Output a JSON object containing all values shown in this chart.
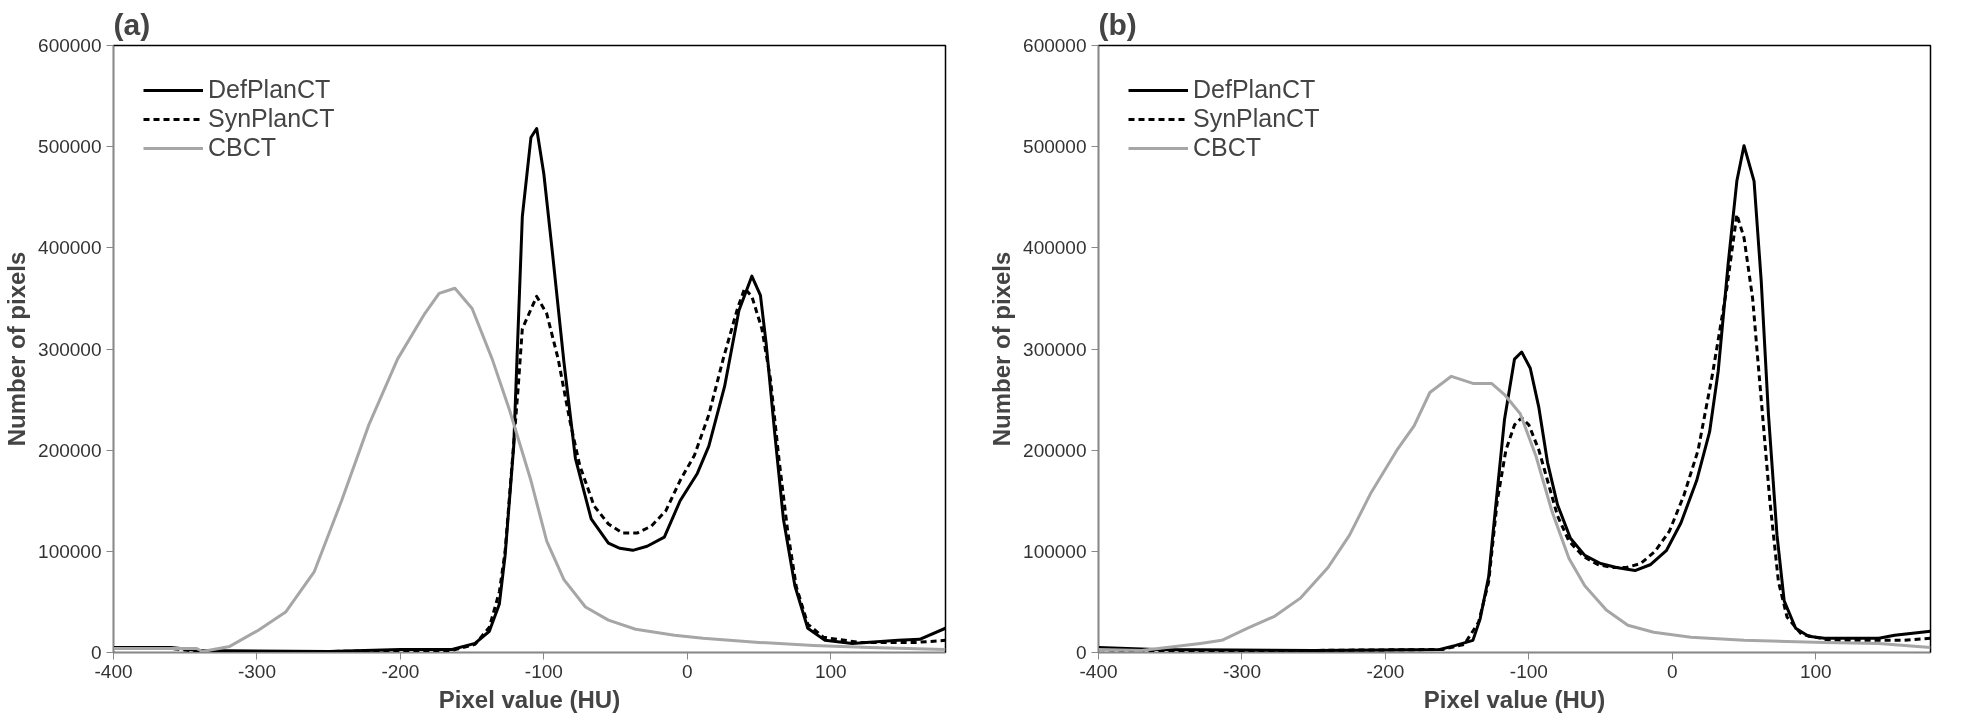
{
  "chart_data": [
    {
      "type": "line",
      "title": "(a)",
      "xlabel": "Pixel value (HU)",
      "ylabel": "Number of pixels",
      "xlim": [
        -400,
        180
      ],
      "xticks": [
        -400,
        -300,
        -200,
        -100,
        0,
        100
      ],
      "ylim": [
        0,
        600000
      ],
      "yticks": [
        0,
        100000,
        200000,
        300000,
        400000,
        500000,
        600000
      ],
      "grid": false,
      "legend": "top left",
      "marker": "none",
      "series": [
        {
          "name": "DefPlanCT",
          "color": "#000000",
          "line_style": "solid",
          "x": [
            -400,
            -360,
            -340,
            -250,
            -200,
            -164,
            -148,
            -138,
            -131,
            -127,
            -121,
            -115,
            -109,
            -105,
            -100,
            -94,
            -86,
            -78,
            -67,
            -55,
            -47,
            -38,
            -28,
            -16,
            -5,
            7,
            15,
            26,
            36,
            45,
            51,
            55,
            61,
            67,
            75,
            84,
            96,
            115,
            147,
            162,
            180
          ],
          "values": [
            5000,
            5000,
            2000,
            1000,
            3000,
            3000,
            9000,
            21000,
            48000,
            96000,
            204000,
            431000,
            509000,
            518000,
            473000,
            395000,
            287000,
            192000,
            132000,
            108000,
            103000,
            101000,
            105000,
            114000,
            150000,
            177000,
            204000,
            263000,
            338000,
            372000,
            353000,
            305000,
            216000,
            132000,
            66000,
            24000,
            12000,
            9000,
            12000,
            13000,
            24000
          ]
        },
        {
          "name": "SynPlanCT",
          "color": "#000000",
          "line_style": "dashed",
          "x": [
            -400,
            -360,
            -340,
            -250,
            -200,
            -164,
            -148,
            -138,
            -131,
            -127,
            -118,
            -115,
            -105,
            -98,
            -90,
            -82,
            -75,
            -65,
            -55,
            -45,
            -35,
            -25,
            -15,
            -5,
            5,
            15,
            25,
            35,
            40,
            45,
            52,
            58,
            64,
            70,
            76,
            84,
            95,
            120,
            160,
            180
          ],
          "values": [
            4000,
            4000,
            1000,
            1000,
            2000,
            2000,
            8000,
            25000,
            60000,
            100000,
            260000,
            320000,
            352000,
            335000,
            290000,
            230000,
            185000,
            145000,
            127000,
            118000,
            118000,
            125000,
            140000,
            170000,
            195000,
            235000,
            290000,
            340000,
            360000,
            352000,
            320000,
            270000,
            190000,
            120000,
            65000,
            28000,
            15000,
            10000,
            10000,
            12000
          ]
        },
        {
          "name": "CBCT",
          "color": "#a6a6a6",
          "line_style": "solid",
          "x": [
            -400,
            -342,
            -338,
            -319,
            -299,
            -280,
            -260,
            -241,
            -222,
            -202,
            -183,
            -173,
            -162,
            -150,
            -136,
            -124,
            -109,
            -98,
            -86,
            -71,
            -55,
            -36,
            -9,
            11,
            50,
            88,
            127,
            180
          ],
          "values": [
            4000,
            4000,
            1000,
            6000,
            22000,
            40000,
            80000,
            150000,
            225000,
            290000,
            335000,
            355000,
            360000,
            340000,
            290000,
            240000,
            170000,
            110000,
            72000,
            45000,
            32000,
            23000,
            17000,
            14000,
            10000,
            7000,
            5000,
            3000
          ]
        }
      ]
    },
    {
      "type": "line",
      "title": "(b)",
      "xlabel": "Pixel value (HU)",
      "ylabel": "Number of pixels",
      "xlim": [
        -400,
        180
      ],
      "xticks": [
        -400,
        -300,
        -200,
        -100,
        0,
        100
      ],
      "ylim": [
        0,
        600000
      ],
      "yticks": [
        0,
        100000,
        200000,
        300000,
        400000,
        500000,
        600000
      ],
      "grid": false,
      "legend": "top left",
      "marker": "none",
      "series": [
        {
          "name": "DefPlanCT",
          "color": "#000000",
          "line_style": "solid",
          "x": [
            -400,
            -360,
            -250,
            -162,
            -151,
            -139,
            -134,
            -128,
            -123,
            -117,
            -110,
            -105,
            -99,
            -93,
            -87,
            -80,
            -71,
            -61,
            -50,
            -39,
            -26,
            -15,
            -4,
            6,
            17,
            26,
            32,
            39,
            45,
            50,
            57,
            62,
            67,
            73,
            78,
            86,
            95,
            106,
            144,
            155,
            180
          ],
          "values": [
            5000,
            3000,
            2000,
            3000,
            7000,
            12000,
            33000,
            75000,
            146000,
            230000,
            290000,
            297000,
            281000,
            242000,
            188000,
            146000,
            113000,
            96000,
            88000,
            84000,
            81000,
            87000,
            101000,
            128000,
            170000,
            218000,
            278000,
            385000,
            466000,
            501000,
            466000,
            367000,
            236000,
            116000,
            51000,
            24000,
            16000,
            14000,
            14000,
            17000,
            21000
          ]
        },
        {
          "name": "SynPlanCT",
          "color": "#000000",
          "line_style": "dashed",
          "x": [
            -400,
            -350,
            -160,
            -145,
            -135,
            -128,
            -122,
            -116,
            -110,
            -105,
            -100,
            -93,
            -87,
            -80,
            -72,
            -62,
            -52,
            -42,
            -32,
            -22,
            -12,
            -2,
            8,
            18,
            28,
            38,
            45,
            50,
            56,
            62,
            68,
            74,
            80,
            90,
            110,
            160,
            180
          ],
          "values": [
            3000,
            1000,
            3000,
            8000,
            30000,
            70000,
            150000,
            200000,
            225000,
            232000,
            225000,
            200000,
            170000,
            135000,
            110000,
            95000,
            87000,
            84000,
            84000,
            88000,
            100000,
            120000,
            155000,
            200000,
            275000,
            360000,
            433000,
            410000,
            350000,
            250000,
            150000,
            70000,
            35000,
            18000,
            12000,
            12000,
            14000
          ]
        },
        {
          "name": "CBCT",
          "color": "#a6a6a6",
          "line_style": "solid",
          "x": [
            -400,
            -370,
            -329,
            -314,
            -296,
            -277,
            -259,
            -240,
            -225,
            -210,
            -192,
            -180,
            -169,
            -154,
            -139,
            -126,
            -117,
            -106,
            -95,
            -84,
            -72,
            -61,
            -46,
            -31,
            -13,
            13,
            50,
            106,
            144,
            180
          ],
          "values": [
            3000,
            2000,
            9000,
            12000,
            24000,
            36000,
            54000,
            84000,
            116000,
            158000,
            200000,
            224000,
            257000,
            273000,
            266000,
            266000,
            255000,
            236000,
            194000,
            140000,
            93000,
            66000,
            42000,
            27000,
            20000,
            15000,
            12000,
            10000,
            9000,
            5000
          ]
        }
      ]
    }
  ]
}
